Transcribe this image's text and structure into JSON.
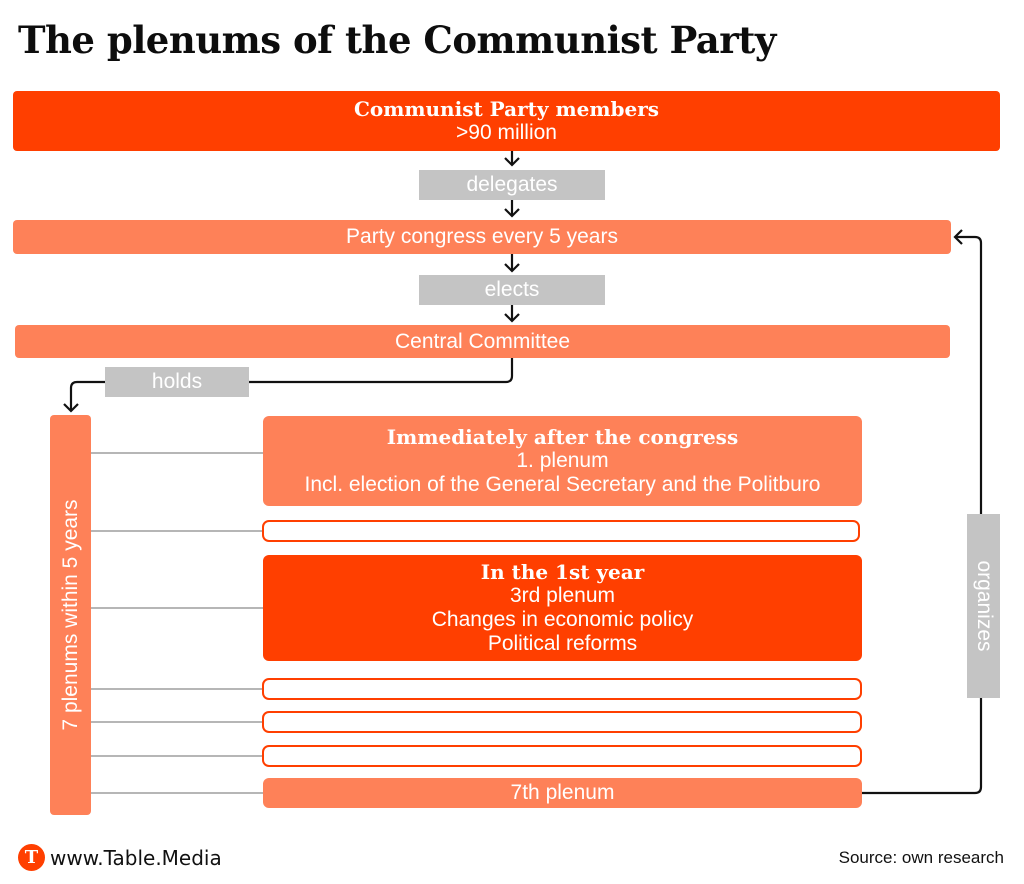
{
  "title": "The plenums of the Communist Party",
  "members": {
    "heading": "Communist Party members",
    "value": ">90 million"
  },
  "delegates_label": "delegates",
  "congress_label": "Party congress every 5 years",
  "elects_label": "elects",
  "committee_label": "Central Committee",
  "holds_label": "holds",
  "side_label": "7 plenums within 5 years",
  "organizes_label": "organizes",
  "plenum1": {
    "heading": "Immediately after the congress",
    "name": "1. plenum",
    "detail": "Incl. election of the General Secretary and the Politburo"
  },
  "plenum3": {
    "heading": "In the 1st year",
    "name": "3rd plenum",
    "detail1": "Changes in economic policy",
    "detail2": "Political reforms"
  },
  "plenum7": {
    "name": "7th plenum"
  },
  "footer": {
    "url": "www.Table.Media",
    "source": "Source: own research",
    "logo_letter": "T"
  },
  "colors": {
    "accent": "#ff3f00",
    "light_accent": "#fe8158",
    "gray_label": "#c4c4c4"
  }
}
